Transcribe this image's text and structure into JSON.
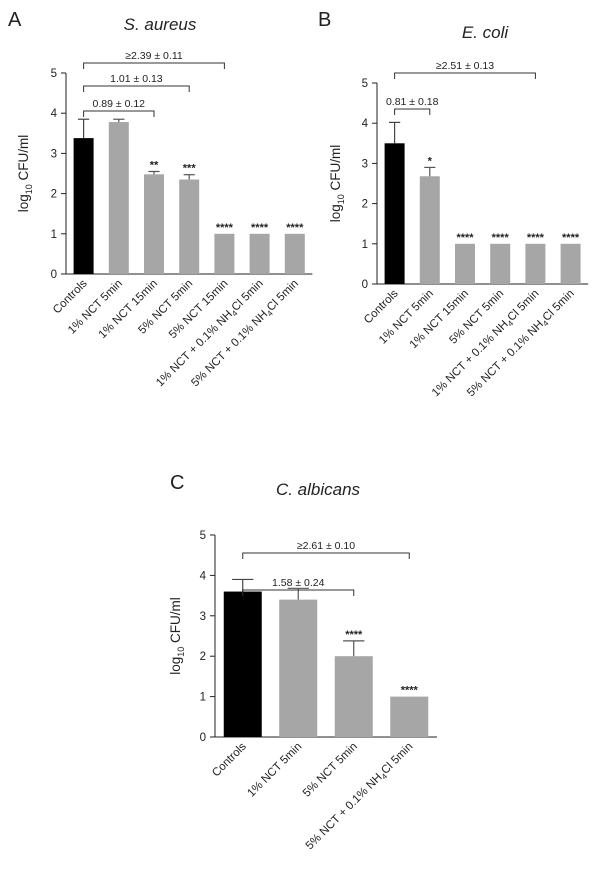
{
  "chart_data": [
    {
      "type": "bar",
      "panel": "A",
      "title": "S. aureus",
      "ylabel": "log10 CFU/ml",
      "ylabel_main": "log",
      "ylabel_sub": "10",
      "ylabel_rest": " CFU/ml",
      "ylim": [
        0,
        5
      ],
      "yticks": [
        "0",
        "1",
        "2",
        "3",
        "4",
        "5"
      ],
      "categories": [
        "Controls",
        "1% NCT 5min",
        "1% NCT 15min",
        "5% NCT 5min",
        "5% NCT 15min",
        "1% NCT + 0.1% NH4Cl 5min",
        "5% NCT + 0.1% NH4Cl 5min"
      ],
      "values": [
        3.38,
        3.78,
        2.48,
        2.35,
        1.0,
        1.0,
        1.0
      ],
      "errors": [
        0.47,
        0.07,
        0.07,
        0.12,
        0,
        0,
        0
      ],
      "colors": [
        "#000000",
        "#a6a6a6",
        "#a6a6a6",
        "#a6a6a6",
        "#a6a6a6",
        "#a6a6a6",
        "#a6a6a6"
      ],
      "significance": [
        "",
        "",
        "**",
        "***",
        "****",
        "****",
        "****"
      ],
      "comparisons": [
        {
          "from": 0,
          "to": 2,
          "label": "0.89 ± 0.12"
        },
        {
          "from": 0,
          "to": 3,
          "label": "1.01 ± 0.13"
        },
        {
          "from": 0,
          "to": 4,
          "label": "≥2.39 ± 0.11"
        }
      ]
    },
    {
      "type": "bar",
      "panel": "B",
      "title": "E. coli",
      "ylabel": "log10 CFU/ml",
      "ylabel_main": "log",
      "ylabel_sub": "10",
      "ylabel_rest": " CFU/ml",
      "ylim": [
        0,
        5
      ],
      "yticks": [
        "0",
        "1",
        "2",
        "3",
        "4",
        "5"
      ],
      "categories": [
        "Controls",
        "1% NCT 5min",
        "1% NCT 15min",
        "5% NCT 5min",
        "1% NCT + 0.1% NH4Cl 5min",
        "5% NCT + 0.1% NH4Cl 5min"
      ],
      "values": [
        3.5,
        2.68,
        1.0,
        1.0,
        1.0,
        1.0
      ],
      "errors": [
        0.52,
        0.22,
        0,
        0,
        0,
        0
      ],
      "colors": [
        "#000000",
        "#a6a6a6",
        "#a6a6a6",
        "#a6a6a6",
        "#a6a6a6",
        "#a6a6a6"
      ],
      "significance": [
        "",
        "*",
        "****",
        "****",
        "****",
        "****"
      ],
      "comparisons": [
        {
          "from": 0,
          "to": 1,
          "label": "0.81 ± 0.18"
        },
        {
          "from": 0,
          "to": 4,
          "label": "≥2.51 ± 0.13"
        }
      ]
    },
    {
      "type": "bar",
      "panel": "C",
      "title": "C. albicans",
      "ylabel": "log10 CFU/ml",
      "ylabel_main": "log",
      "ylabel_sub": "10",
      "ylabel_rest": " CFU/ml",
      "ylim": [
        0,
        5
      ],
      "yticks": [
        "0",
        "1",
        "2",
        "3",
        "4",
        "5"
      ],
      "categories": [
        "Controls",
        "1% NCT 5min",
        "5% NCT 5min",
        "5% NCT + 0.1% NH4Cl 5min"
      ],
      "values": [
        3.6,
        3.4,
        2.0,
        1.0
      ],
      "errors": [
        0.3,
        0.28,
        0.38,
        0
      ],
      "colors": [
        "#000000",
        "#a6a6a6",
        "#a6a6a6",
        "#a6a6a6"
      ],
      "significance": [
        "",
        "",
        "****",
        "****"
      ],
      "comparisons": [
        {
          "from": 0,
          "to": 2,
          "label": "1.58 ± 0.24"
        },
        {
          "from": 0,
          "to": 3,
          "label": "≥2.61 ± 0.10"
        }
      ]
    }
  ]
}
